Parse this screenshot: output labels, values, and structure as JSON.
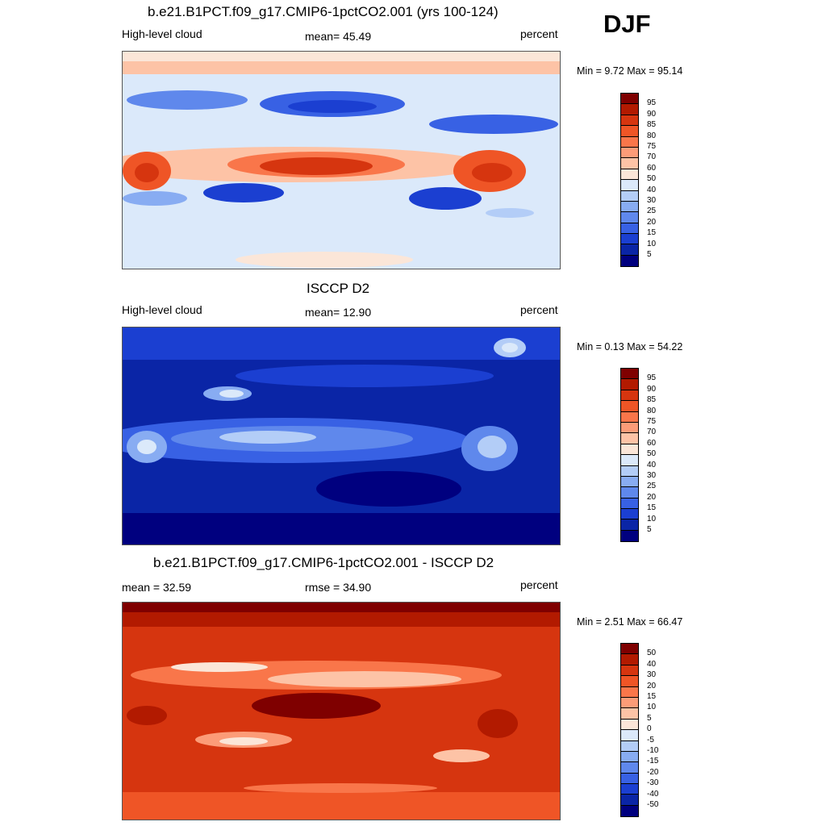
{
  "season": "DJF",
  "panels": [
    {
      "title": "b.e21.B1PCT.f09_g17.CMIP6-1pctCO2.001 (yrs 100-124)",
      "left_label": "High-level cloud",
      "center_label": "mean=  45.49",
      "right_label": "percent",
      "minmax": "Min =   9.72 Max =  95.14",
      "colorbar_labels": [
        "95",
        "90",
        "85",
        "80",
        "75",
        "70",
        "60",
        "50",
        "40",
        "30",
        "25",
        "20",
        "15",
        "10",
        "5"
      ]
    },
    {
      "title": "ISCCP D2",
      "left_label": "High-level cloud",
      "center_label": "mean=  12.90",
      "right_label": "percent",
      "minmax": "Min =   0.13 Max =  54.22",
      "colorbar_labels": [
        "95",
        "90",
        "85",
        "80",
        "75",
        "70",
        "60",
        "50",
        "40",
        "30",
        "25",
        "20",
        "15",
        "10",
        "5"
      ]
    },
    {
      "title": "b.e21.B1PCT.f09_g17.CMIP6-1pctCO2.001 - ISCCP D2",
      "left_label": "mean =  32.59",
      "center_label": "rmse =  34.90",
      "right_label": "percent",
      "minmax": "Min =   2.51 Max =  66.47",
      "colorbar_labels": [
        "50",
        "40",
        "30",
        "20",
        "15",
        "10",
        "5",
        "0",
        "-5",
        "-10",
        "-15",
        "-20",
        "-30",
        "-40",
        "-50"
      ]
    }
  ],
  "colormap": [
    "#7f0000",
    "#b21a00",
    "#d6350f",
    "#ef5526",
    "#f9764a",
    "#fc9c78",
    "#fdc3a6",
    "#fbe6d8",
    "#dbe9fa",
    "#b3cdf7",
    "#88acf2",
    "#5f88ec",
    "#3861e4",
    "#1b3fd1",
    "#0a25a6",
    "#00007f"
  ]
}
